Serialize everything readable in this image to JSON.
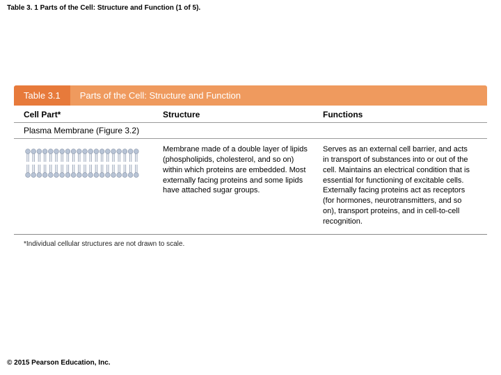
{
  "page_title": "Table 3. 1 Parts of the Cell: Structure and Function (1 of 5).",
  "table": {
    "header_bar": {
      "number": "Table 3.1",
      "title": "Parts of the Cell: Structure and Function",
      "bg_dark": "#e77a3b",
      "bg_light": "#ef9a5e"
    },
    "columns": {
      "cell_part": "Cell Part*",
      "structure": "Structure",
      "functions": "Functions"
    },
    "section_label": "Plasma Membrane (Figure 3.2)",
    "row": {
      "structure": "Membrane made of a double layer of lipids (phospholipids, cholesterol, and so on) within which proteins are embedded. Most externally facing proteins and some lipids have attached sugar groups.",
      "functions": "Serves as an external cell barrier, and acts in transport of substances into or out of the cell. Maintains an electrical condition that is essential for functioning of excitable cells. Externally facing proteins act as receptors (for hormones, neurotransmitters, and so on), transport proteins, and in cell-to-cell recognition."
    },
    "footnote": "*Individual cellular structures are not drawn to scale.",
    "membrane_colors": {
      "head": "#b8c4d6",
      "head_stroke": "#8490a4",
      "tail": "#9aa6ba"
    }
  },
  "copyright": "© 2015 Pearson Education, Inc."
}
